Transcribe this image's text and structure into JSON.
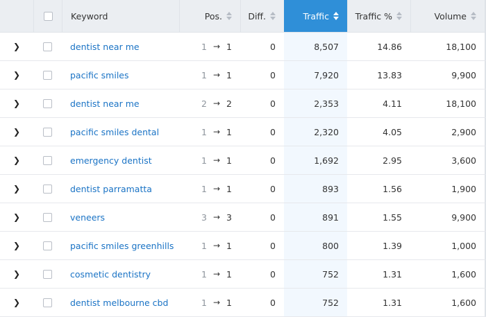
{
  "header": {
    "keyword": "Keyword",
    "pos": "Pos.",
    "diff": "Diff.",
    "traffic": "Traffic",
    "traffic_pct": "Traffic %",
    "volume": "Volume"
  },
  "icons": {
    "expand": "chevron-right-icon",
    "sort": "sort-icon",
    "position_change": "arrow-right-icon",
    "checkbox": "checkbox-icon"
  },
  "colors": {
    "header_bg": "#ebeef2",
    "active_sort_column": "#2f8fd8",
    "active_column_tint": "#f2f8fe",
    "link": "#1a73c5"
  },
  "rows": [
    {
      "keyword": "dentist near me",
      "prev": "1",
      "arrow": "→",
      "pos": "1",
      "diff": "0",
      "traffic": "8,507",
      "traffic_pct": "14.86",
      "volume": "18,100"
    },
    {
      "keyword": "pacific smiles",
      "prev": "1",
      "arrow": "→",
      "pos": "1",
      "diff": "0",
      "traffic": "7,920",
      "traffic_pct": "13.83",
      "volume": "9,900"
    },
    {
      "keyword": "dentist near me",
      "prev": "2",
      "arrow": "→",
      "pos": "2",
      "diff": "0",
      "traffic": "2,353",
      "traffic_pct": "4.11",
      "volume": "18,100"
    },
    {
      "keyword": "pacific smiles dental",
      "prev": "1",
      "arrow": "→",
      "pos": "1",
      "diff": "0",
      "traffic": "2,320",
      "traffic_pct": "4.05",
      "volume": "2,900"
    },
    {
      "keyword": "emergency dentist",
      "prev": "1",
      "arrow": "→",
      "pos": "1",
      "diff": "0",
      "traffic": "1,692",
      "traffic_pct": "2.95",
      "volume": "3,600"
    },
    {
      "keyword": "dentist parramatta",
      "prev": "1",
      "arrow": "→",
      "pos": "1",
      "diff": "0",
      "traffic": "893",
      "traffic_pct": "1.56",
      "volume": "1,900"
    },
    {
      "keyword": "veneers",
      "prev": "3",
      "arrow": "→",
      "pos": "3",
      "diff": "0",
      "traffic": "891",
      "traffic_pct": "1.55",
      "volume": "9,900"
    },
    {
      "keyword": "pacific smiles greenhills",
      "prev": "1",
      "arrow": "→",
      "pos": "1",
      "diff": "0",
      "traffic": "800",
      "traffic_pct": "1.39",
      "volume": "1,000"
    },
    {
      "keyword": "cosmetic dentistry",
      "prev": "1",
      "arrow": "→",
      "pos": "1",
      "diff": "0",
      "traffic": "752",
      "traffic_pct": "1.31",
      "volume": "1,600"
    },
    {
      "keyword": "dentist melbourne cbd",
      "prev": "1",
      "arrow": "→",
      "pos": "1",
      "diff": "0",
      "traffic": "752",
      "traffic_pct": "1.31",
      "volume": "1,600"
    }
  ]
}
